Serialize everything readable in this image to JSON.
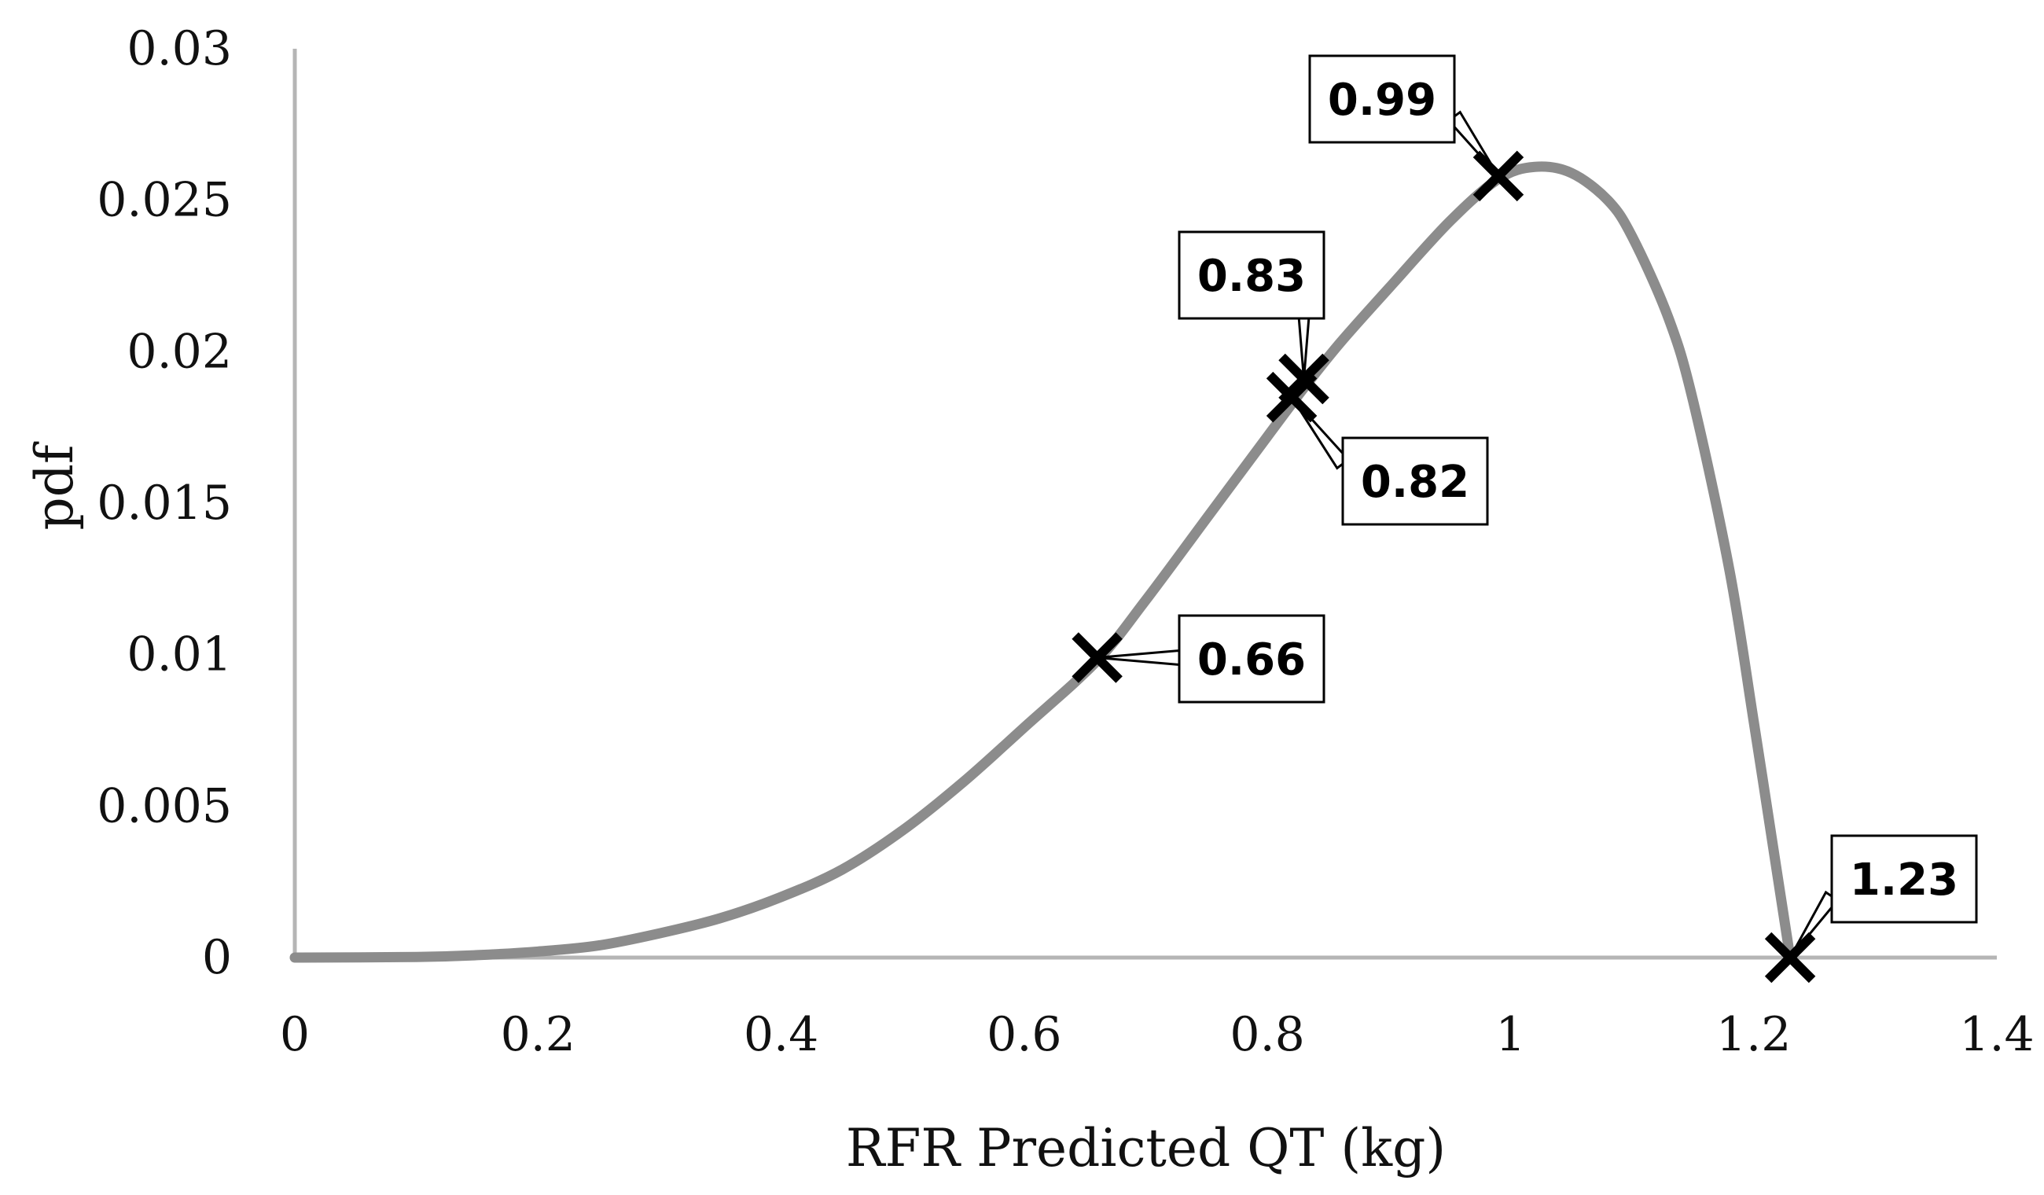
{
  "chart_data": {
    "type": "line",
    "title": "",
    "xlabel": "RFR Predicted QT (kg)",
    "ylabel": "pdf",
    "xlim": [
      0,
      1.4
    ],
    "ylim": [
      0,
      0.03
    ],
    "x_ticks": [
      0,
      0.2,
      0.4,
      0.6,
      0.8,
      1,
      1.2,
      1.4
    ],
    "x_tick_labels": [
      "0",
      "0.2",
      "0.4",
      "0.6",
      "0.8",
      "1",
      "1.2",
      "1.4"
    ],
    "y_ticks": [
      0,
      0.005,
      0.01,
      0.015,
      0.02,
      0.025,
      0.03
    ],
    "y_tick_labels": [
      "0",
      "0.005",
      "0.01",
      "0.015",
      "0.02",
      "0.025",
      "0.03"
    ],
    "grid": false,
    "legend": "none",
    "series": [
      {
        "name": "pdf",
        "color": "#8c8c8c",
        "x": [
          0,
          0.1,
          0.15,
          0.2,
          0.25,
          0.3,
          0.35,
          0.4,
          0.45,
          0.5,
          0.55,
          0.6,
          0.66,
          0.7,
          0.75,
          0.8,
          0.83,
          0.86,
          0.9,
          0.95,
          0.99,
          1.02,
          1.05,
          1.08,
          1.1,
          1.13,
          1.15,
          1.18,
          1.2,
          1.22,
          1.23
        ],
        "y": [
          0,
          2e-05,
          8e-05,
          0.0002,
          0.0004,
          0.0008,
          0.0013,
          0.002,
          0.0029,
          0.0042,
          0.0058,
          0.0076,
          0.0098,
          0.0118,
          0.0145,
          0.0172,
          0.0188,
          0.0203,
          0.0221,
          0.0243,
          0.0257,
          0.0261,
          0.0259,
          0.025,
          0.0238,
          0.0211,
          0.0184,
          0.0128,
          0.0078,
          0.0026,
          0
        ]
      }
    ],
    "markers": [
      {
        "x": 0.66,
        "y": 0.0099,
        "label": "0.66"
      },
      {
        "x": 0.82,
        "y": 0.0185,
        "label": "0.82"
      },
      {
        "x": 0.83,
        "y": 0.0191,
        "label": "0.83"
      },
      {
        "x": 0.99,
        "y": 0.0258,
        "label": "0.99"
      },
      {
        "x": 1.23,
        "y": 0.0,
        "label": "1.23"
      }
    ]
  }
}
